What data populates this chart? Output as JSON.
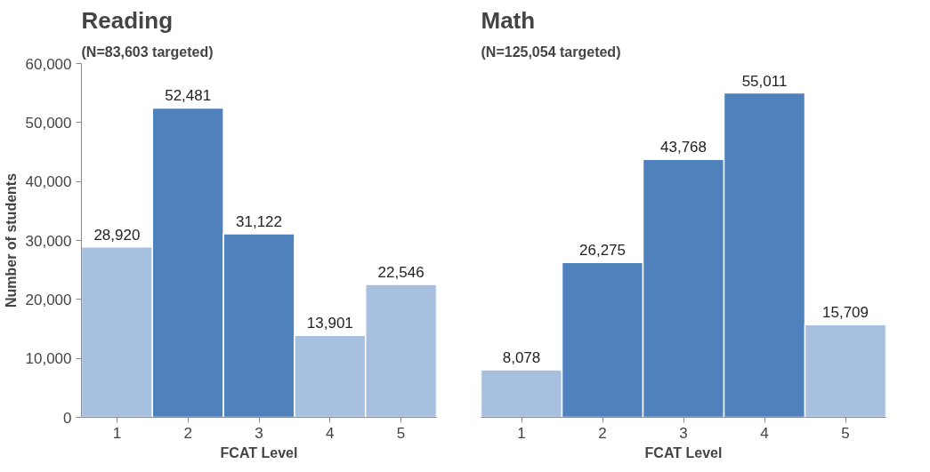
{
  "chart_data": [
    {
      "type": "bar",
      "title": "Reading",
      "subtitle": "(N=83,603 targeted)",
      "xlabel": "FCAT Level",
      "ylabel": "Number of students",
      "categories": [
        "1",
        "2",
        "3",
        "4",
        "5"
      ],
      "values": [
        28920,
        52481,
        31122,
        13901,
        22546
      ],
      "colors": [
        "#a7c0e0",
        "#4f81bd",
        "#4f81bd",
        "#a7c0e0",
        "#a7c0e0"
      ],
      "ylim": [
        0,
        60000
      ],
      "yticks": [
        {
          "value": 0,
          "label": "0"
        },
        {
          "value": 10000,
          "label": "10,000"
        },
        {
          "value": 20000,
          "label": "20,000"
        },
        {
          "value": 30000,
          "label": "30,000"
        },
        {
          "value": 40000,
          "label": "40,000"
        },
        {
          "value": 50000,
          "label": "50,000"
        },
        {
          "value": 60000,
          "label": "60,000"
        }
      ],
      "value_labels": [
        "28,920",
        "52,481",
        "31,122",
        "13,901",
        "22,546"
      ],
      "grid": false
    },
    {
      "type": "bar",
      "title": "Math",
      "subtitle": "(N=125,054 targeted)",
      "xlabel": "FCAT Level",
      "categories": [
        "1",
        "2",
        "3",
        "4",
        "5"
      ],
      "values": [
        8078,
        26275,
        43768,
        55011,
        15709
      ],
      "colors": [
        "#a7c0e0",
        "#4f81bd",
        "#4f81bd",
        "#4f81bd",
        "#a7c0e0"
      ],
      "ylim": [
        0,
        60000
      ],
      "tick_labels": "x",
      "value_labels": [
        "8,078",
        "26,275",
        "43,768",
        "55,011",
        "15,709"
      ],
      "grid": false
    }
  ]
}
